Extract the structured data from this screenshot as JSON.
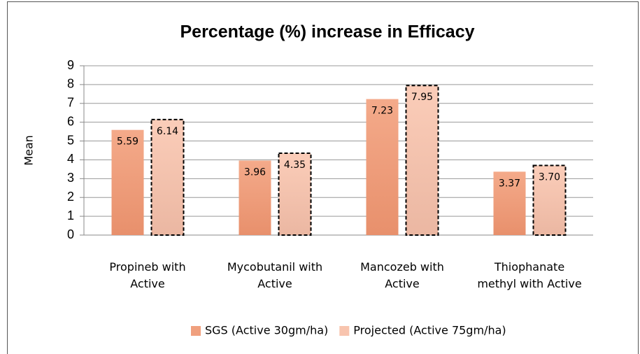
{
  "chart_data": {
    "type": "bar",
    "title": "Percentage (%) increase in Efficacy",
    "y_label": "Mean",
    "categories": [
      "Propineb with Active",
      "Mycobutanil with Active",
      "Mancozeb with Active",
      "Thiophanate methyl with Active"
    ],
    "series": [
      {
        "name": "SGS (Active 30gm/ha)",
        "color": "#f0a07e",
        "values": [
          5.59,
          3.96,
          7.23,
          3.37
        ],
        "value_labels": [
          "5.59",
          "3.96",
          "7.23",
          "3.37"
        ]
      },
      {
        "name": "Projected (Active 75gm/ha)",
        "color": "#f8c4ae",
        "line_style": "dashed",
        "values": [
          6.14,
          4.35,
          7.95,
          3.7
        ],
        "value_labels": [
          "6.14",
          "4.35",
          "7.95",
          "3.70"
        ]
      }
    ],
    "ylim": [
      0,
      9
    ],
    "yticks": [
      0,
      1,
      2,
      3,
      4,
      5,
      6,
      7,
      8,
      9
    ],
    "grid": true,
    "legend": "bottom"
  }
}
